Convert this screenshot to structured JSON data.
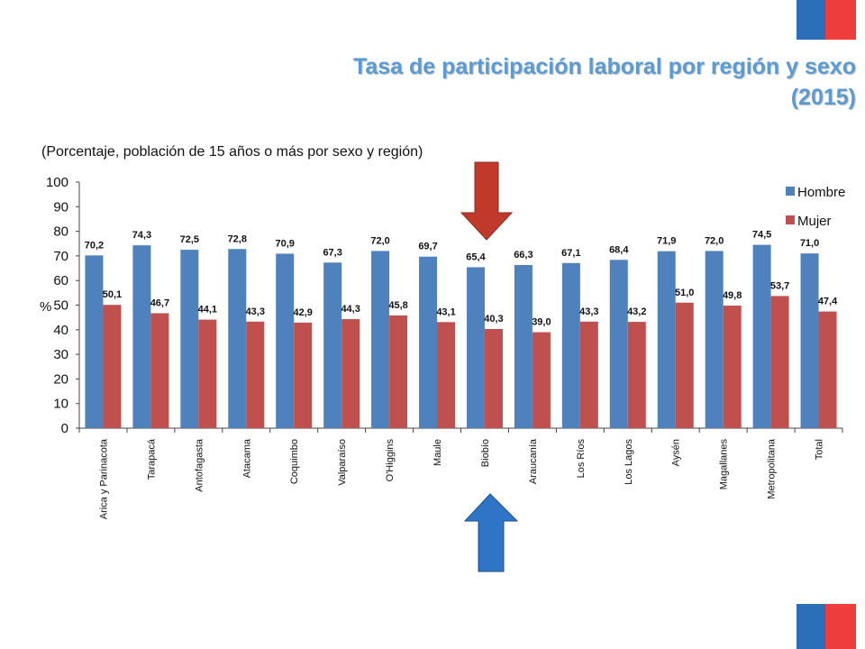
{
  "header": {
    "title_line1": "Tasa de participación laboral por región y sexo",
    "title_line2": "(2015)"
  },
  "colors": {
    "hombre": "#4f81bd",
    "mujer": "#c0504d",
    "title": "#5b9bd5",
    "flag_blue": "#2a6fb8",
    "flag_red": "#ef3c3c",
    "arrow_red": "#c0392b",
    "arrow_blue": "#2e75c7"
  },
  "icons": {
    "down_arrow": "down-arrow-icon",
    "up_arrow": "up-arrow-icon"
  },
  "chart_data": {
    "type": "bar",
    "subtitle": "(Porcentaje, población de 15 años o más por sexo y región)",
    "ylabel": "%",
    "ylim": [
      0,
      100
    ],
    "yticks": [
      "0",
      "10",
      "20",
      "30",
      "40",
      "50",
      "60",
      "70",
      "80",
      "90",
      "100"
    ],
    "legend_position": "top-right",
    "highlighted_category": "Biobío",
    "categories": [
      "Arica y Parinacota",
      "Tarapacá",
      "Antofagasta",
      "Atacama",
      "Coquimbo",
      "Valparaíso",
      "O'Higgins",
      "Maule",
      "Biobío",
      "Araucanía",
      "Los Ríos",
      "Los Lagos",
      "Aysén",
      "Magallanes",
      "Metropolitana",
      "Total"
    ],
    "series": [
      {
        "name": "Hombre",
        "values": [
          70.2,
          74.3,
          72.5,
          72.8,
          70.9,
          67.3,
          72.0,
          69.7,
          65.4,
          66.3,
          67.1,
          68.4,
          71.9,
          72.0,
          74.5,
          71.0
        ],
        "labels": [
          "70,2",
          "74,3",
          "72,5",
          "72,8",
          "70,9",
          "67,3",
          "72,0",
          "69,7",
          "65,4",
          "66,3",
          "67,1",
          "68,4",
          "71,9",
          "72,0",
          "74,5",
          "71,0"
        ]
      },
      {
        "name": "Mujer",
        "values": [
          50.1,
          46.7,
          44.1,
          43.3,
          42.9,
          44.3,
          45.8,
          43.1,
          40.3,
          39.0,
          43.3,
          43.2,
          51.0,
          49.8,
          53.7,
          47.4
        ],
        "labels": [
          "50,1",
          "46,7",
          "44,1",
          "43,3",
          "42,9",
          "44,3",
          "45,8",
          "43,1",
          "40,3",
          "39,0",
          "43,3",
          "43,2",
          "51,0",
          "49,8",
          "53,7",
          "47,4"
        ]
      }
    ]
  }
}
